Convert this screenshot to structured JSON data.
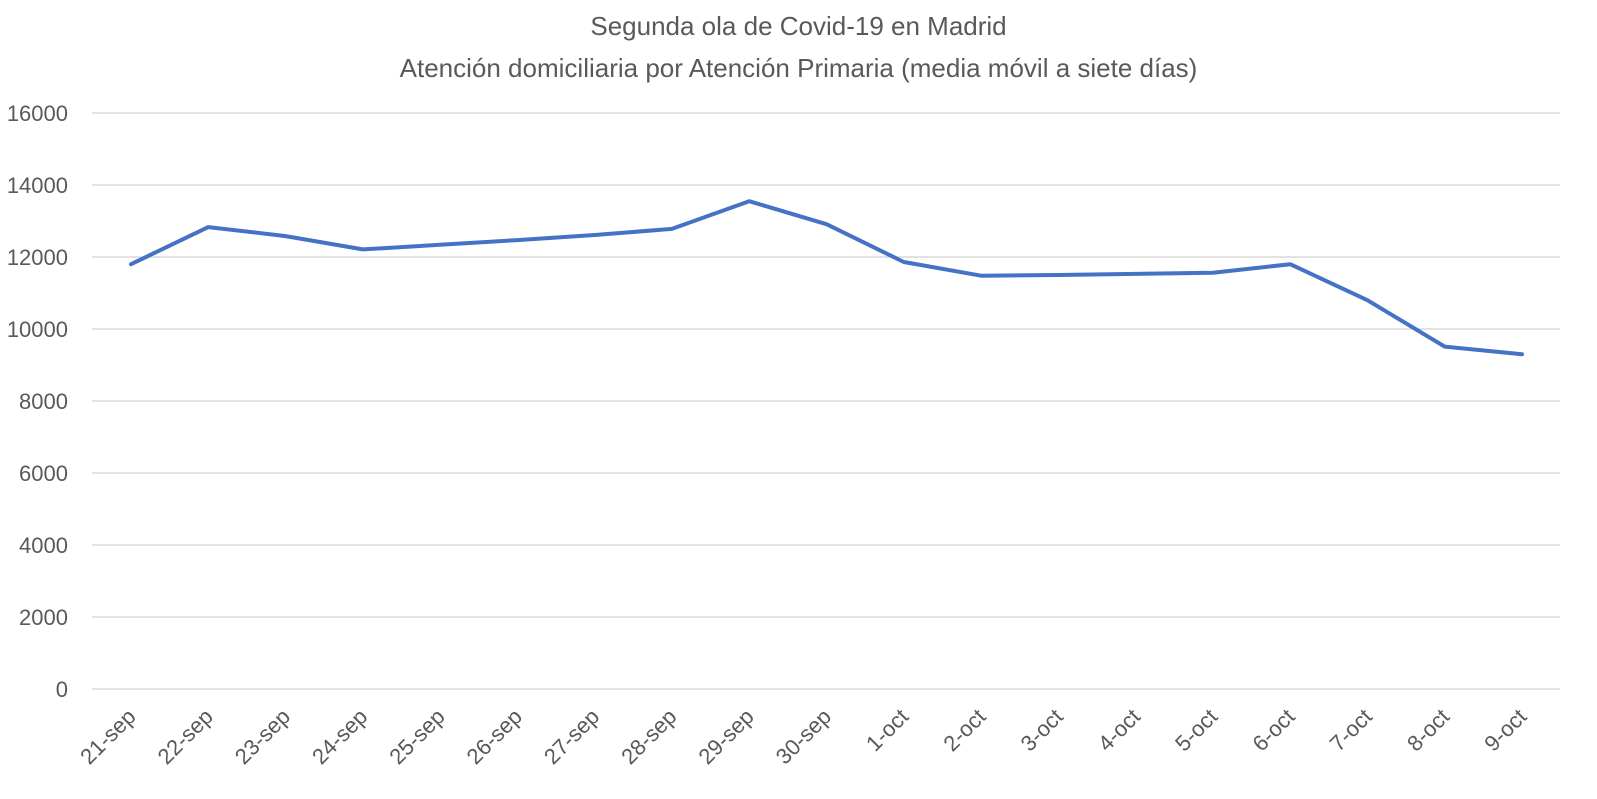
{
  "chart_data": {
    "type": "line",
    "title": "Segunda ola de Covid-19 en Madrid",
    "subtitle": "Atención domiciliaria por Atención Primaria (media móvil a siete días)",
    "xlabel": "",
    "ylabel": "",
    "categories": [
      "21-sep",
      "22-sep",
      "23-sep",
      "24-sep",
      "25-sep",
      "26-sep",
      "27-sep",
      "28-sep",
      "29-sep",
      "30-sep",
      "1-oct",
      "2-oct",
      "3-oct",
      "4-oct",
      "5-oct",
      "6-oct",
      "7-oct",
      "8-oct",
      "9-oct"
    ],
    "series": [
      {
        "color": "#4472c4",
        "values": [
          11800,
          12830,
          12580,
          12210,
          12340,
          12470,
          12610,
          12780,
          13550,
          12910,
          11860,
          11480,
          11500,
          11530,
          11560,
          11800,
          10800,
          9510,
          9300
        ]
      }
    ],
    "ylim": [
      0,
      16000
    ],
    "yticks": [
      0,
      2000,
      4000,
      6000,
      8000,
      10000,
      12000,
      14000,
      16000
    ],
    "grid": true,
    "legend": "none"
  }
}
